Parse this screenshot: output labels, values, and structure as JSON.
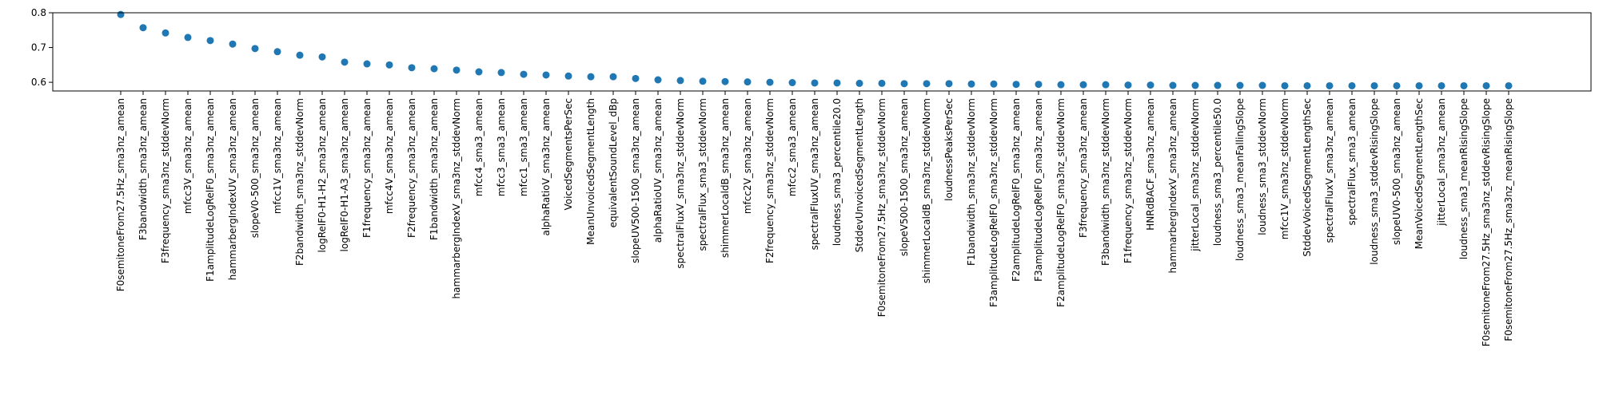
{
  "chart_data": {
    "type": "scatter",
    "title": "",
    "xlabel": "",
    "ylabel": "",
    "ylim": [
      0.575,
      0.8
    ],
    "yticks": [
      0.6,
      0.7,
      0.8
    ],
    "ytick_labels": [
      "0.6",
      "0.7",
      "0.8"
    ],
    "grid": false,
    "marker_color": "#1f77b4",
    "categories": [
      "F0semitoneFrom27.5Hz_sma3nz_amean",
      "F3bandwidth_sma3nz_amean",
      "F3frequency_sma3nz_stddevNorm",
      "mfcc3V_sma3nz_amean",
      "F1amplitudeLogRelF0_sma3nz_amean",
      "hammarbergIndexUV_sma3nz_amean",
      "slopeV0-500_sma3nz_amean",
      "mfcc1V_sma3nz_amean",
      "F2bandwidth_sma3nz_stddevNorm",
      "logRelF0-H1-H2_sma3nz_amean",
      "logRelF0-H1-A3_sma3nz_amean",
      "F1frequency_sma3nz_amean",
      "mfcc4V_sma3nz_amean",
      "F2frequency_sma3nz_amean",
      "F1bandwidth_sma3nz_amean",
      "hammarbergIndexV_sma3nz_stddevNorm",
      "mfcc4_sma3_amean",
      "mfcc3_sma3_amean",
      "mfcc1_sma3_amean",
      "alphaRatioV_sma3nz_amean",
      "VoicedSegmentsPerSec",
      "MeanUnvoicedSegmentLength",
      "equivalentSoundLevel_dBp",
      "slopeUV500-1500_sma3nz_amean",
      "alphaRatioUV_sma3nz_amean",
      "spectralFluxV_sma3nz_stddevNorm",
      "spectralFlux_sma3_stddevNorm",
      "shimmerLocaldB_sma3nz_amean",
      "mfcc2V_sma3nz_amean",
      "F2frequency_sma3nz_stddevNorm",
      "mfcc2_sma3_amean",
      "spectralFluxUV_sma3nz_amean",
      "loudness_sma3_percentile20.0",
      "StddevUnvoicedSegmentLength",
      "F0semitoneFrom27.5Hz_sma3nz_stddevNorm",
      "slopeV500-1500_sma3nz_amean",
      "shimmerLocaldB_sma3nz_stddevNorm",
      "loudnessPeaksPerSec",
      "F1bandwidth_sma3nz_stddevNorm",
      "F3amplitudeLogRelF0_sma3nz_stddevNorm",
      "F2amplitudeLogRelF0_sma3nz_amean",
      "F3amplitudeLogRelF0_sma3nz_amean",
      "F2amplitudeLogRelF0_sma3nz_stddevNorm",
      "F3frequency_sma3nz_amean",
      "F3bandwidth_sma3nz_stddevNorm",
      "F1frequency_sma3nz_stddevNorm",
      "HNRdBACF_sma3nz_amean",
      "hammarbergIndexV_sma3nz_amean",
      "jitterLocal_sma3nz_stddevNorm",
      "loudness_sma3_percentile50.0",
      "loudness_sma3_meanFallingSlope",
      "loudness_sma3_stddevNorm",
      "mfcc1V_sma3nz_stddevNorm",
      "StddevVoicedSegmentLengthSec",
      "spectralFluxV_sma3nz_amean",
      "spectralFlux_sma3_amean",
      "loudness_sma3_stddevRisingSlope",
      "slopeUV0-500_sma3nz_amean",
      "MeanVoicedSegmentLengthSec",
      "jitterLocal_sma3nz_amean",
      "loudness_sma3_meanRisingSlope",
      "F0semitoneFrom27.5Hz_sma3nz_stddevRisingSlope",
      "F0semitoneFrom27.5Hz_sma3nz_meanRisingSlope"
    ],
    "values": [
      0.795,
      0.757,
      0.742,
      0.729,
      0.72,
      0.71,
      0.697,
      0.688,
      0.678,
      0.673,
      0.658,
      0.653,
      0.65,
      0.642,
      0.639,
      0.635,
      0.63,
      0.628,
      0.623,
      0.621,
      0.618,
      0.616,
      0.616,
      0.611,
      0.607,
      0.605,
      0.603,
      0.602,
      0.601,
      0.6,
      0.599,
      0.598,
      0.598,
      0.597,
      0.597,
      0.596,
      0.596,
      0.596,
      0.595,
      0.595,
      0.594,
      0.594,
      0.593,
      0.593,
      0.593,
      0.592,
      0.592,
      0.591,
      0.591,
      0.591,
      0.591,
      0.591,
      0.59,
      0.59,
      0.59,
      0.59,
      0.59,
      0.59,
      0.59,
      0.59,
      0.59,
      0.59,
      0.59
    ]
  }
}
